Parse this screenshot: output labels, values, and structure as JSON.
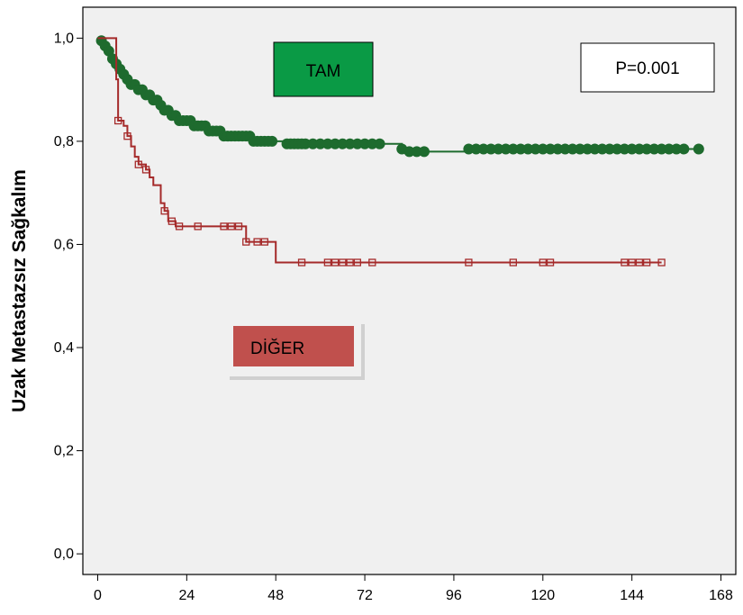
{
  "chart_data": {
    "type": "line",
    "title": "",
    "xlabel": "",
    "ylabel": "Uzak Metastazsız Sağkalım",
    "xlim": [
      -4,
      172
    ],
    "ylim": [
      -0.04,
      1.06
    ],
    "xticks": [
      0,
      24,
      48,
      72,
      96,
      120,
      144,
      168
    ],
    "yticks": [
      0.0,
      0.2,
      0.4,
      0.6,
      0.8,
      1.0
    ],
    "xtick_labels": [
      "0",
      "24",
      "48",
      "72",
      "96",
      "120",
      "144",
      "168"
    ],
    "ytick_labels": [
      "0,0",
      "0,2",
      "0,4",
      "0,6",
      "0,8",
      "1,0"
    ],
    "grid": false,
    "annotations": {
      "tam_label": "TAM",
      "diger_label": "DİĞER",
      "p_value": "P=0.001"
    },
    "series": [
      {
        "name": "TAM",
        "color": "#1e6b2e",
        "marker": "filled-circle",
        "steps": [
          [
            0,
            1.0
          ],
          [
            1,
            0.995
          ],
          [
            2,
            0.985
          ],
          [
            3,
            0.975
          ],
          [
            4,
            0.96
          ],
          [
            5,
            0.95
          ],
          [
            6,
            0.94
          ],
          [
            7,
            0.93
          ],
          [
            8,
            0.92
          ],
          [
            9,
            0.91
          ],
          [
            11,
            0.9
          ],
          [
            13,
            0.89
          ],
          [
            15,
            0.88
          ],
          [
            17,
            0.87
          ],
          [
            18,
            0.86
          ],
          [
            20,
            0.85
          ],
          [
            22,
            0.84
          ],
          [
            26,
            0.83
          ],
          [
            30,
            0.82
          ],
          [
            34,
            0.81
          ],
          [
            42,
            0.8
          ],
          [
            50,
            0.795
          ],
          [
            82,
            0.785
          ],
          [
            84,
            0.78
          ],
          [
            100,
            0.785
          ],
          [
            162,
            0.785
          ]
        ],
        "censored": [
          1,
          2,
          3,
          4,
          5,
          6,
          7,
          8,
          9,
          10,
          11,
          12,
          13,
          14,
          15,
          16,
          17,
          18,
          19,
          20,
          21,
          22,
          23,
          24,
          25,
          26,
          27,
          28,
          29,
          30,
          31,
          32,
          33,
          34,
          35,
          36,
          37,
          38,
          39,
          40,
          41,
          42,
          43,
          44,
          45,
          46,
          47,
          51,
          52,
          53,
          54,
          55,
          56,
          58,
          60,
          62,
          64,
          66,
          68,
          70,
          72,
          74,
          76,
          82,
          84,
          86,
          88,
          100,
          102,
          104,
          106,
          108,
          110,
          112,
          114,
          116,
          118,
          120,
          122,
          124,
          126,
          128,
          130,
          132,
          134,
          136,
          138,
          140,
          142,
          144,
          146,
          148,
          150,
          152,
          154,
          156,
          158,
          162
        ]
      },
      {
        "name": "DİĞER",
        "color": "#a52a2a",
        "marker": "open-square",
        "steps": [
          [
            0,
            1.0
          ],
          [
            5,
            0.92
          ],
          [
            5.5,
            0.84
          ],
          [
            7,
            0.83
          ],
          [
            8,
            0.81
          ],
          [
            9,
            0.79
          ],
          [
            10,
            0.77
          ],
          [
            11,
            0.755
          ],
          [
            13,
            0.745
          ],
          [
            14,
            0.73
          ],
          [
            15,
            0.715
          ],
          [
            17,
            0.68
          ],
          [
            18,
            0.665
          ],
          [
            19,
            0.645
          ],
          [
            21,
            0.635
          ],
          [
            38,
            0.635
          ],
          [
            40,
            0.605
          ],
          [
            48,
            0.565
          ],
          [
            152,
            0.565
          ]
        ],
        "censored": [
          5.5,
          8,
          11,
          13,
          18,
          20,
          22,
          27,
          34,
          36,
          38,
          40,
          43,
          45,
          55,
          62,
          64,
          66,
          68,
          70,
          74,
          100,
          112,
          120,
          122,
          142,
          144,
          146,
          148,
          152
        ]
      }
    ]
  }
}
